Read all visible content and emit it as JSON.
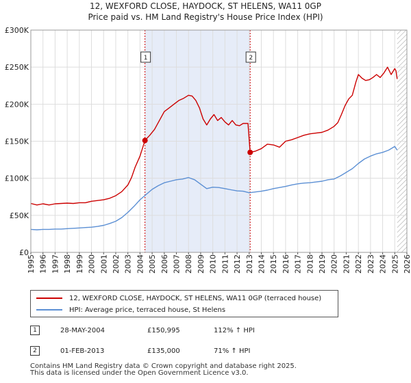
{
  "title_line1": "12, WEXFORD CLOSE, HAYDOCK, ST HELENS, WA11 0GP",
  "title_line2": "Price paid vs. HM Land Registry's House Price Index (HPI)",
  "legend": {
    "property": "12, WEXFORD CLOSE, HAYDOCK, ST HELENS, WA11 0GP (terraced house)",
    "hpi": "HPI: Average price, terraced house, St Helens"
  },
  "transactions": [
    {
      "num": "1",
      "date": "28-MAY-2004",
      "price": "£150,995",
      "hpi_pct": "112% ↑ HPI"
    },
    {
      "num": "2",
      "date": "01-FEB-2013",
      "price": "£135,000",
      "hpi_pct": "71% ↑ HPI"
    }
  ],
  "footer_line1": "Contains HM Land Registry data © Crown copyright and database right 2025.",
  "footer_line2": "This data is licensed under the Open Government Licence v3.0.",
  "colors": {
    "property": "#cc0000",
    "hpi": "#5b8fd4",
    "shade": "#e6ecf8",
    "grid": "#dddddd"
  },
  "chart_data": {
    "type": "line",
    "xlabel": "",
    "ylabel": "",
    "xlim": [
      1995,
      2026
    ],
    "ylim": [
      0,
      300000
    ],
    "ytick_labels": [
      "£0",
      "£50K",
      "£100K",
      "£150K",
      "£200K",
      "£250K",
      "£300K"
    ],
    "ytick_values": [
      0,
      50000,
      100000,
      150000,
      200000,
      250000,
      300000
    ],
    "xtick_labels": [
      "1995",
      "1996",
      "1997",
      "1998",
      "1999",
      "2000",
      "2001",
      "2002",
      "2003",
      "2004",
      "2005",
      "2006",
      "2007",
      "2008",
      "2009",
      "2010",
      "2011",
      "2012",
      "2013",
      "2014",
      "2015",
      "2016",
      "2017",
      "2018",
      "2019",
      "2020",
      "2021",
      "2022",
      "2023",
      "2024",
      "2025",
      "2026"
    ],
    "shaded_span": [
      2004.41,
      2013.08
    ],
    "future_hatch_from": 2025.2,
    "markers": [
      {
        "label": "1",
        "x": 2004.41,
        "y": 150995
      },
      {
        "label": "2",
        "x": 2013.08,
        "y": 135000
      }
    ],
    "series": [
      {
        "name": "12, WEXFORD CLOSE, HAYDOCK, ST HELENS, WA11 0GP (terraced house)",
        "x": [
          1995.0,
          1995.5,
          1996.0,
          1996.5,
          1997.0,
          1997.5,
          1998.0,
          1998.5,
          1999.0,
          1999.5,
          2000.0,
          2000.5,
          2001.0,
          2001.5,
          2002.0,
          2002.5,
          2003.0,
          2003.3,
          2003.6,
          2004.0,
          2004.41,
          2004.8,
          2005.2,
          2005.6,
          2006.0,
          2006.4,
          2006.8,
          2007.2,
          2007.6,
          2008.0,
          2008.3,
          2008.6,
          2008.9,
          2009.2,
          2009.5,
          2009.8,
          2010.1,
          2010.4,
          2010.7,
          2011.0,
          2011.3,
          2011.6,
          2011.9,
          2012.2,
          2012.5,
          2012.9,
          2013.08,
          2013.5,
          2014.0,
          2014.5,
          2015.0,
          2015.5,
          2016.0,
          2016.5,
          2017.0,
          2017.5,
          2018.0,
          2018.5,
          2019.0,
          2019.5,
          2020.0,
          2020.3,
          2020.6,
          2020.9,
          2021.2,
          2021.5,
          2021.8,
          2022.0,
          2022.3,
          2022.6,
          2022.9,
          2023.2,
          2023.5,
          2023.8,
          2024.1,
          2024.4,
          2024.7,
          2025.0,
          2025.1,
          2025.2
        ],
        "values": [
          66000,
          64000,
          65500,
          64000,
          65500,
          66000,
          66500,
          66000,
          67000,
          67000,
          69000,
          70000,
          71000,
          73000,
          76500,
          82000,
          91000,
          101000,
          115000,
          130000,
          150995,
          158000,
          166000,
          178000,
          190000,
          195000,
          200000,
          205000,
          208000,
          212000,
          211000,
          205000,
          195000,
          180000,
          172000,
          180000,
          186000,
          178000,
          182000,
          176000,
          172000,
          178000,
          172000,
          171000,
          174000,
          174000,
          135000,
          136500,
          140000,
          146000,
          145000,
          142000,
          150000,
          152000,
          155000,
          158000,
          160000,
          161000,
          162000,
          165000,
          170000,
          175000,
          186000,
          198000,
          207000,
          212000,
          230000,
          240000,
          235000,
          232000,
          233000,
          236000,
          240000,
          236000,
          242000,
          250000,
          240000,
          248000,
          245000,
          234000
        ]
      },
      {
        "name": "HPI: Average price, terraced house, St Helens",
        "x": [
          1995.0,
          1995.5,
          1996.0,
          1996.5,
          1997.0,
          1997.5,
          1998.0,
          1998.5,
          1999.0,
          1999.5,
          2000.0,
          2000.5,
          2001.0,
          2001.5,
          2002.0,
          2002.5,
          2003.0,
          2003.5,
          2004.0,
          2004.5,
          2005.0,
          2005.5,
          2006.0,
          2006.5,
          2007.0,
          2007.5,
          2008.0,
          2008.5,
          2009.0,
          2009.5,
          2010.0,
          2010.5,
          2011.0,
          2011.5,
          2012.0,
          2012.5,
          2013.0,
          2013.5,
          2014.0,
          2014.5,
          2015.0,
          2015.5,
          2016.0,
          2016.5,
          2017.0,
          2017.5,
          2018.0,
          2018.5,
          2019.0,
          2019.5,
          2020.0,
          2020.5,
          2021.0,
          2021.5,
          2022.0,
          2022.5,
          2023.0,
          2023.5,
          2024.0,
          2024.5,
          2025.0,
          2025.2
        ],
        "values": [
          31000,
          30500,
          31000,
          31000,
          31500,
          31500,
          32000,
          32500,
          33000,
          33500,
          34000,
          35000,
          36500,
          39000,
          42000,
          47000,
          54000,
          62000,
          71000,
          78000,
          85000,
          90000,
          94000,
          96000,
          98000,
          99000,
          101000,
          98000,
          92000,
          86000,
          88000,
          87500,
          86000,
          84500,
          83000,
          82500,
          80500,
          81500,
          82500,
          84000,
          86000,
          87500,
          89000,
          91000,
          92500,
          93500,
          94000,
          95000,
          96000,
          98000,
          99000,
          103000,
          108000,
          113000,
          120000,
          126000,
          130000,
          133000,
          135000,
          138000,
          143000,
          138000
        ]
      }
    ]
  }
}
